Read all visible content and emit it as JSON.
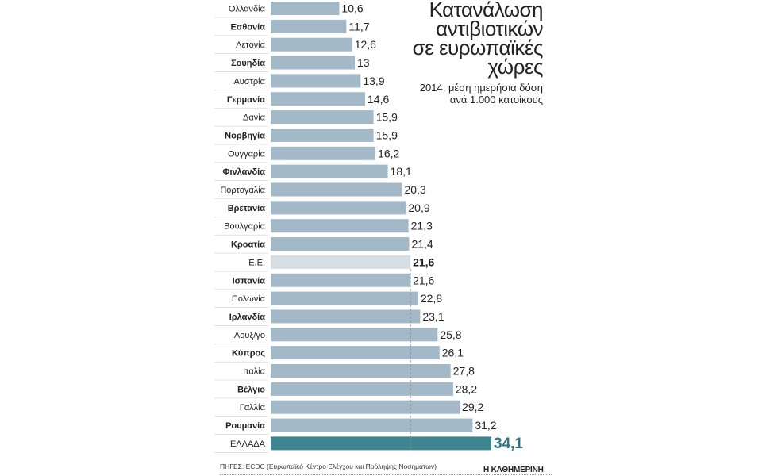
{
  "title": "Κατανάλωση\nαντιβιοτικών\nσε ευρωπαϊκές\nχώρες",
  "subtitle": "2014, μέση ημερήσια δόση\nανά 1.000 κατοίκους",
  "source": "ΠΗΓΕΣ: ECDC (Ευρωπαϊκό Κέντρο Ελέγχου και Πρόληψης Νοσημάτων)",
  "credit": "Η ΚΑΘΗΜΕΡΙΝΗ",
  "colors": {
    "bar": "#a3b9c7",
    "eu_bar": "#d6dee4",
    "greece_bar": "#3d8590",
    "greece_label": "#2d7580",
    "reference_line": "#888888"
  },
  "chart_data": {
    "type": "bar",
    "orientation": "horizontal",
    "categories": [
      "Ολλανδία",
      "Εσθονία",
      "Λετονία",
      "Σουηδία",
      "Αυστρία",
      "Γερμανία",
      "Δανία",
      "Νορβηγία",
      "Ουγγαρία",
      "Φινλανδία",
      "Πορτογαλία",
      "Βρετανία",
      "Βουλγαρία",
      "Κροατία",
      "Ε.Ε.",
      "Ισπανία",
      "Πολωνία",
      "Ιρλανδία",
      "Λουξ/γο",
      "Κύπρος",
      "Ιταλία",
      "Βέλγιο",
      "Γαλλία",
      "Ρουμανία",
      "ΕΛΛΑΔΑ"
    ],
    "values": [
      10.6,
      11.7,
      12.6,
      13,
      13.9,
      14.6,
      15.9,
      15.9,
      16.2,
      18.1,
      20.3,
      20.9,
      21.3,
      21.4,
      21.6,
      21.6,
      22.8,
      23.1,
      25.8,
      26.1,
      27.8,
      28.2,
      29.2,
      31.2,
      34.1
    ],
    "value_labels": [
      "10,6",
      "11,7",
      "12,6",
      "13",
      "13,9",
      "14,6",
      "15,9",
      "15,9",
      "16,2",
      "18,1",
      "20,3",
      "20,9",
      "21,3",
      "21,4",
      "21,6",
      "21,6",
      "22,8",
      "23,1",
      "25,8",
      "26,1",
      "27,8",
      "28,2",
      "29,2",
      "31,2",
      "34,1"
    ],
    "bold_label_indices": [
      1,
      3,
      5,
      7,
      9,
      11,
      13,
      15,
      17,
      19,
      21,
      23
    ],
    "highlight": {
      "eu_index": 14,
      "greece_index": 24
    },
    "reference_line": {
      "value": 21.6,
      "style": "dashed"
    },
    "xlim": [
      0,
      34.1
    ]
  }
}
